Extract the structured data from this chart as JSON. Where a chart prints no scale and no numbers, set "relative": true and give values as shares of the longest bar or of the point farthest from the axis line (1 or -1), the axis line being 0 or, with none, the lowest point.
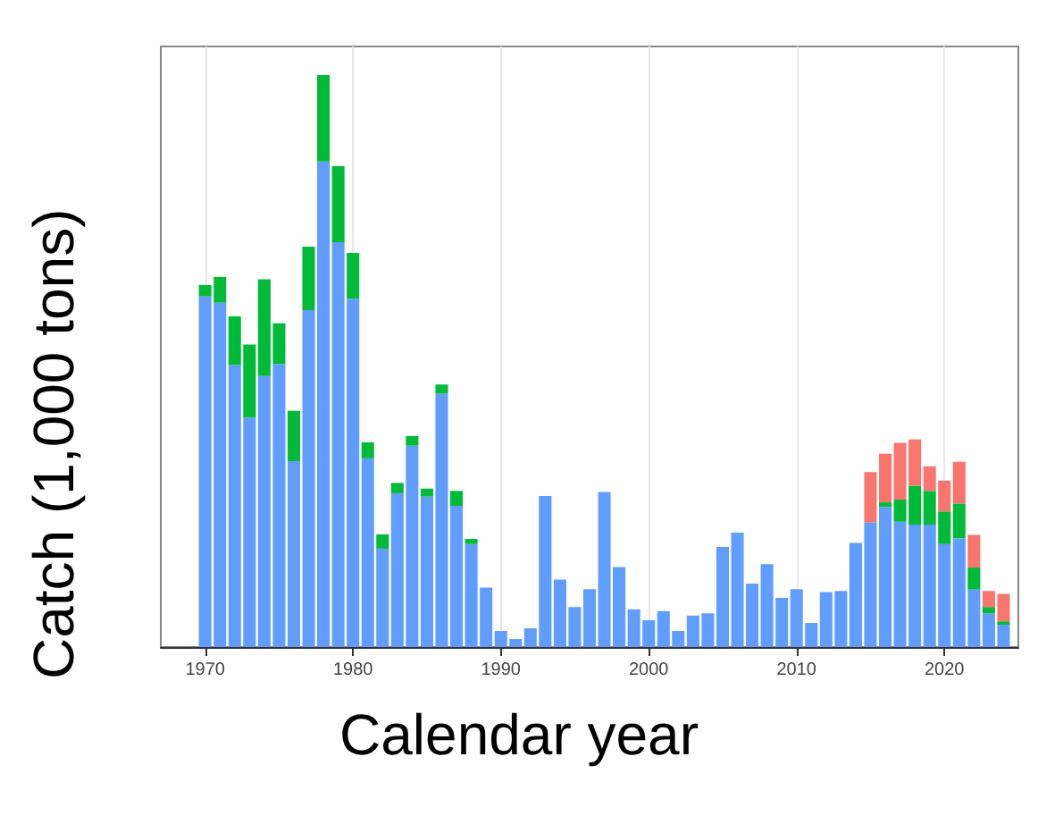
{
  "chart_data": {
    "type": "bar",
    "stacked": true,
    "relative": true,
    "xlabel": "Calendar year",
    "ylabel": "Catch (1,000 tons)",
    "x": [
      1970,
      1971,
      1972,
      1973,
      1974,
      1975,
      1976,
      1977,
      1978,
      1979,
      1980,
      1981,
      1982,
      1983,
      1984,
      1985,
      1986,
      1987,
      1988,
      1989,
      1990,
      1991,
      1992,
      1993,
      1994,
      1995,
      1996,
      1997,
      1998,
      1999,
      2000,
      2001,
      2002,
      2003,
      2004,
      2005,
      2006,
      2007,
      2008,
      2009,
      2010,
      2011,
      2012,
      2013,
      2014,
      2015,
      2016,
      2017,
      2018,
      2019,
      2020,
      2021,
      2022,
      2023,
      2024
    ],
    "xlim": [
      1967,
      2025
    ],
    "xticks": [
      1970,
      1980,
      1990,
      2000,
      2010,
      2020
    ],
    "grid": "x",
    "series": [
      {
        "color": "#619cff",
        "values": [
          0.613,
          0.602,
          0.493,
          0.401,
          0.474,
          0.495,
          0.325,
          0.589,
          0.849,
          0.708,
          0.609,
          0.33,
          0.172,
          0.269,
          0.352,
          0.263,
          0.443,
          0.247,
          0.18,
          0.104,
          0.028,
          0.014,
          0.033,
          0.264,
          0.118,
          0.07,
          0.101,
          0.271,
          0.14,
          0.066,
          0.047,
          0.063,
          0.028,
          0.055,
          0.059,
          0.175,
          0.2,
          0.111,
          0.145,
          0.086,
          0.101,
          0.042,
          0.096,
          0.098,
          0.182,
          0.218,
          0.245,
          0.219,
          0.214,
          0.214,
          0.18,
          0.19,
          0.101,
          0.059,
          0.039
        ]
      },
      {
        "color": "#00ba38",
        "values": [
          0.02,
          0.045,
          0.085,
          0.128,
          0.169,
          0.071,
          0.088,
          0.111,
          0.151,
          0.133,
          0.08,
          0.028,
          0.025,
          0.018,
          0.017,
          0.014,
          0.016,
          0.026,
          0.009,
          null,
          null,
          null,
          null,
          null,
          null,
          null,
          null,
          null,
          null,
          null,
          null,
          null,
          null,
          null,
          null,
          null,
          null,
          null,
          null,
          null,
          null,
          null,
          null,
          null,
          null,
          null,
          0.008,
          0.039,
          0.068,
          0.059,
          0.057,
          0.061,
          0.038,
          0.011,
          0.006
        ]
      },
      {
        "color": "#f8766d",
        "values": [
          null,
          null,
          null,
          null,
          null,
          null,
          null,
          null,
          null,
          null,
          null,
          null,
          null,
          null,
          null,
          null,
          null,
          null,
          null,
          null,
          null,
          null,
          null,
          null,
          null,
          null,
          null,
          null,
          null,
          null,
          null,
          null,
          null,
          null,
          null,
          null,
          null,
          null,
          null,
          null,
          null,
          null,
          null,
          null,
          null,
          0.088,
          0.085,
          0.099,
          0.081,
          0.043,
          0.054,
          0.073,
          0.057,
          0.028,
          0.048
        ]
      }
    ]
  }
}
